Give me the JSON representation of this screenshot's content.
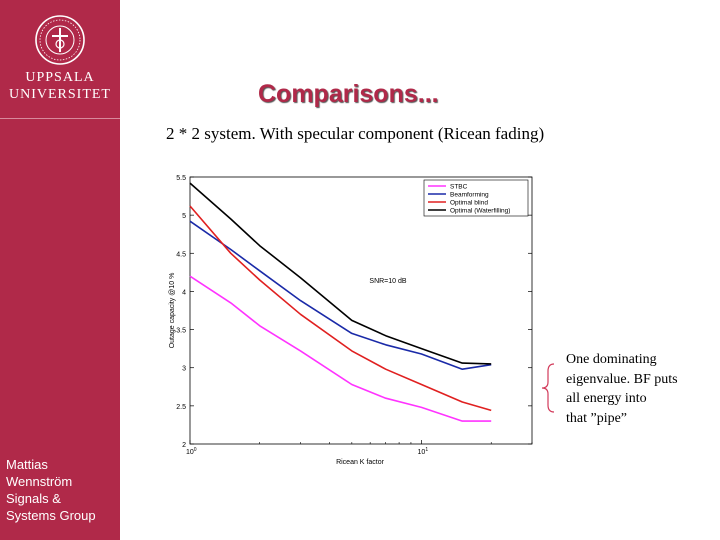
{
  "sidebar": {
    "university_line1": "UPPSALA",
    "university_line2": "UNIVERSITET",
    "author_lines": [
      "Mattias",
      "Wennström",
      "Signals &",
      "Systems Group"
    ],
    "color": "#b02949"
  },
  "slide": {
    "title": "Comparisons...",
    "subtitle": "2 * 2 system. With specular component (Ricean fading)",
    "note_lines": [
      "One dominating",
      "eigenvalue. BF puts",
      "all energy into",
      " that ”pipe”"
    ]
  },
  "chart_data": {
    "type": "line",
    "xlabel": "Ricean K factor",
    "ylabel": "Outage capacity @10 %",
    "xscale": "log",
    "xlim": [
      1,
      30
    ],
    "ylim": [
      2,
      5.5
    ],
    "xticks": [
      {
        "value": 1,
        "base": "10",
        "exp": "0"
      },
      {
        "value": 10,
        "base": "10",
        "exp": "1"
      }
    ],
    "yticks": [
      2,
      2.5,
      3,
      3.5,
      4,
      4.5,
      5,
      5.5
    ],
    "annotation": "SNR=10 dB",
    "legend_position": "top-right",
    "grid": false,
    "x": [
      1,
      1.5,
      2,
      3,
      5,
      7,
      10,
      15,
      20
    ],
    "series": [
      {
        "name": "STBC",
        "color": "#ff33ff",
        "values": [
          4.2,
          3.85,
          3.55,
          3.22,
          2.78,
          2.6,
          2.48,
          2.3,
          2.3
        ]
      },
      {
        "name": "Beamforming",
        "color": "#1a2aa8",
        "values": [
          4.92,
          4.55,
          4.27,
          3.88,
          3.45,
          3.3,
          3.18,
          2.98,
          3.04
        ]
      },
      {
        "name": "Optimal blind",
        "color": "#e02020",
        "values": [
          5.12,
          4.5,
          4.15,
          3.7,
          3.22,
          2.98,
          2.78,
          2.55,
          2.44
        ]
      },
      {
        "name": "Optimal (Waterfilling)",
        "color": "#000000",
        "values": [
          5.42,
          4.95,
          4.6,
          4.18,
          3.62,
          3.42,
          3.25,
          3.06,
          3.05
        ]
      }
    ]
  }
}
